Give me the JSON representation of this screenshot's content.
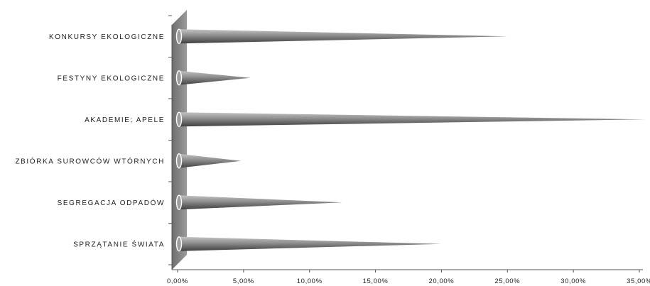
{
  "chart_data": {
    "type": "bar",
    "orientation": "horizontal",
    "style": "3d-cone",
    "categories": [
      "KONKURSY EKOLOGICZNE",
      "FESTYNY EKOLOGICZNE",
      "AKADEMIE; APELE",
      "ZBIÓRKA SUROWCÓW WTÓRNYCH",
      "SEGREGACJA ODPADÓW",
      "SPRZĄTANIE ŚWIATA"
    ],
    "values": [
      25.0,
      5.5,
      35.5,
      4.8,
      12.5,
      20.0
    ],
    "xlim": [
      0,
      35
    ],
    "xticks": [
      0,
      5,
      10,
      15,
      20,
      25,
      30,
      35
    ],
    "xtick_labels": [
      "0,00%",
      "5,00%",
      "10,00%",
      "15,00%",
      "20,00%",
      "25,00%",
      "30,00%",
      "35,00%"
    ],
    "title": "",
    "xlabel": "",
    "ylabel": "",
    "grid": false,
    "legend": "none",
    "colors": {
      "cone_dark": "#3f3f3f",
      "cone_mid": "#8c8c8c",
      "cone_light": "#c4c4c4",
      "wall": "#7a7a7a",
      "axis": "#555555"
    }
  }
}
